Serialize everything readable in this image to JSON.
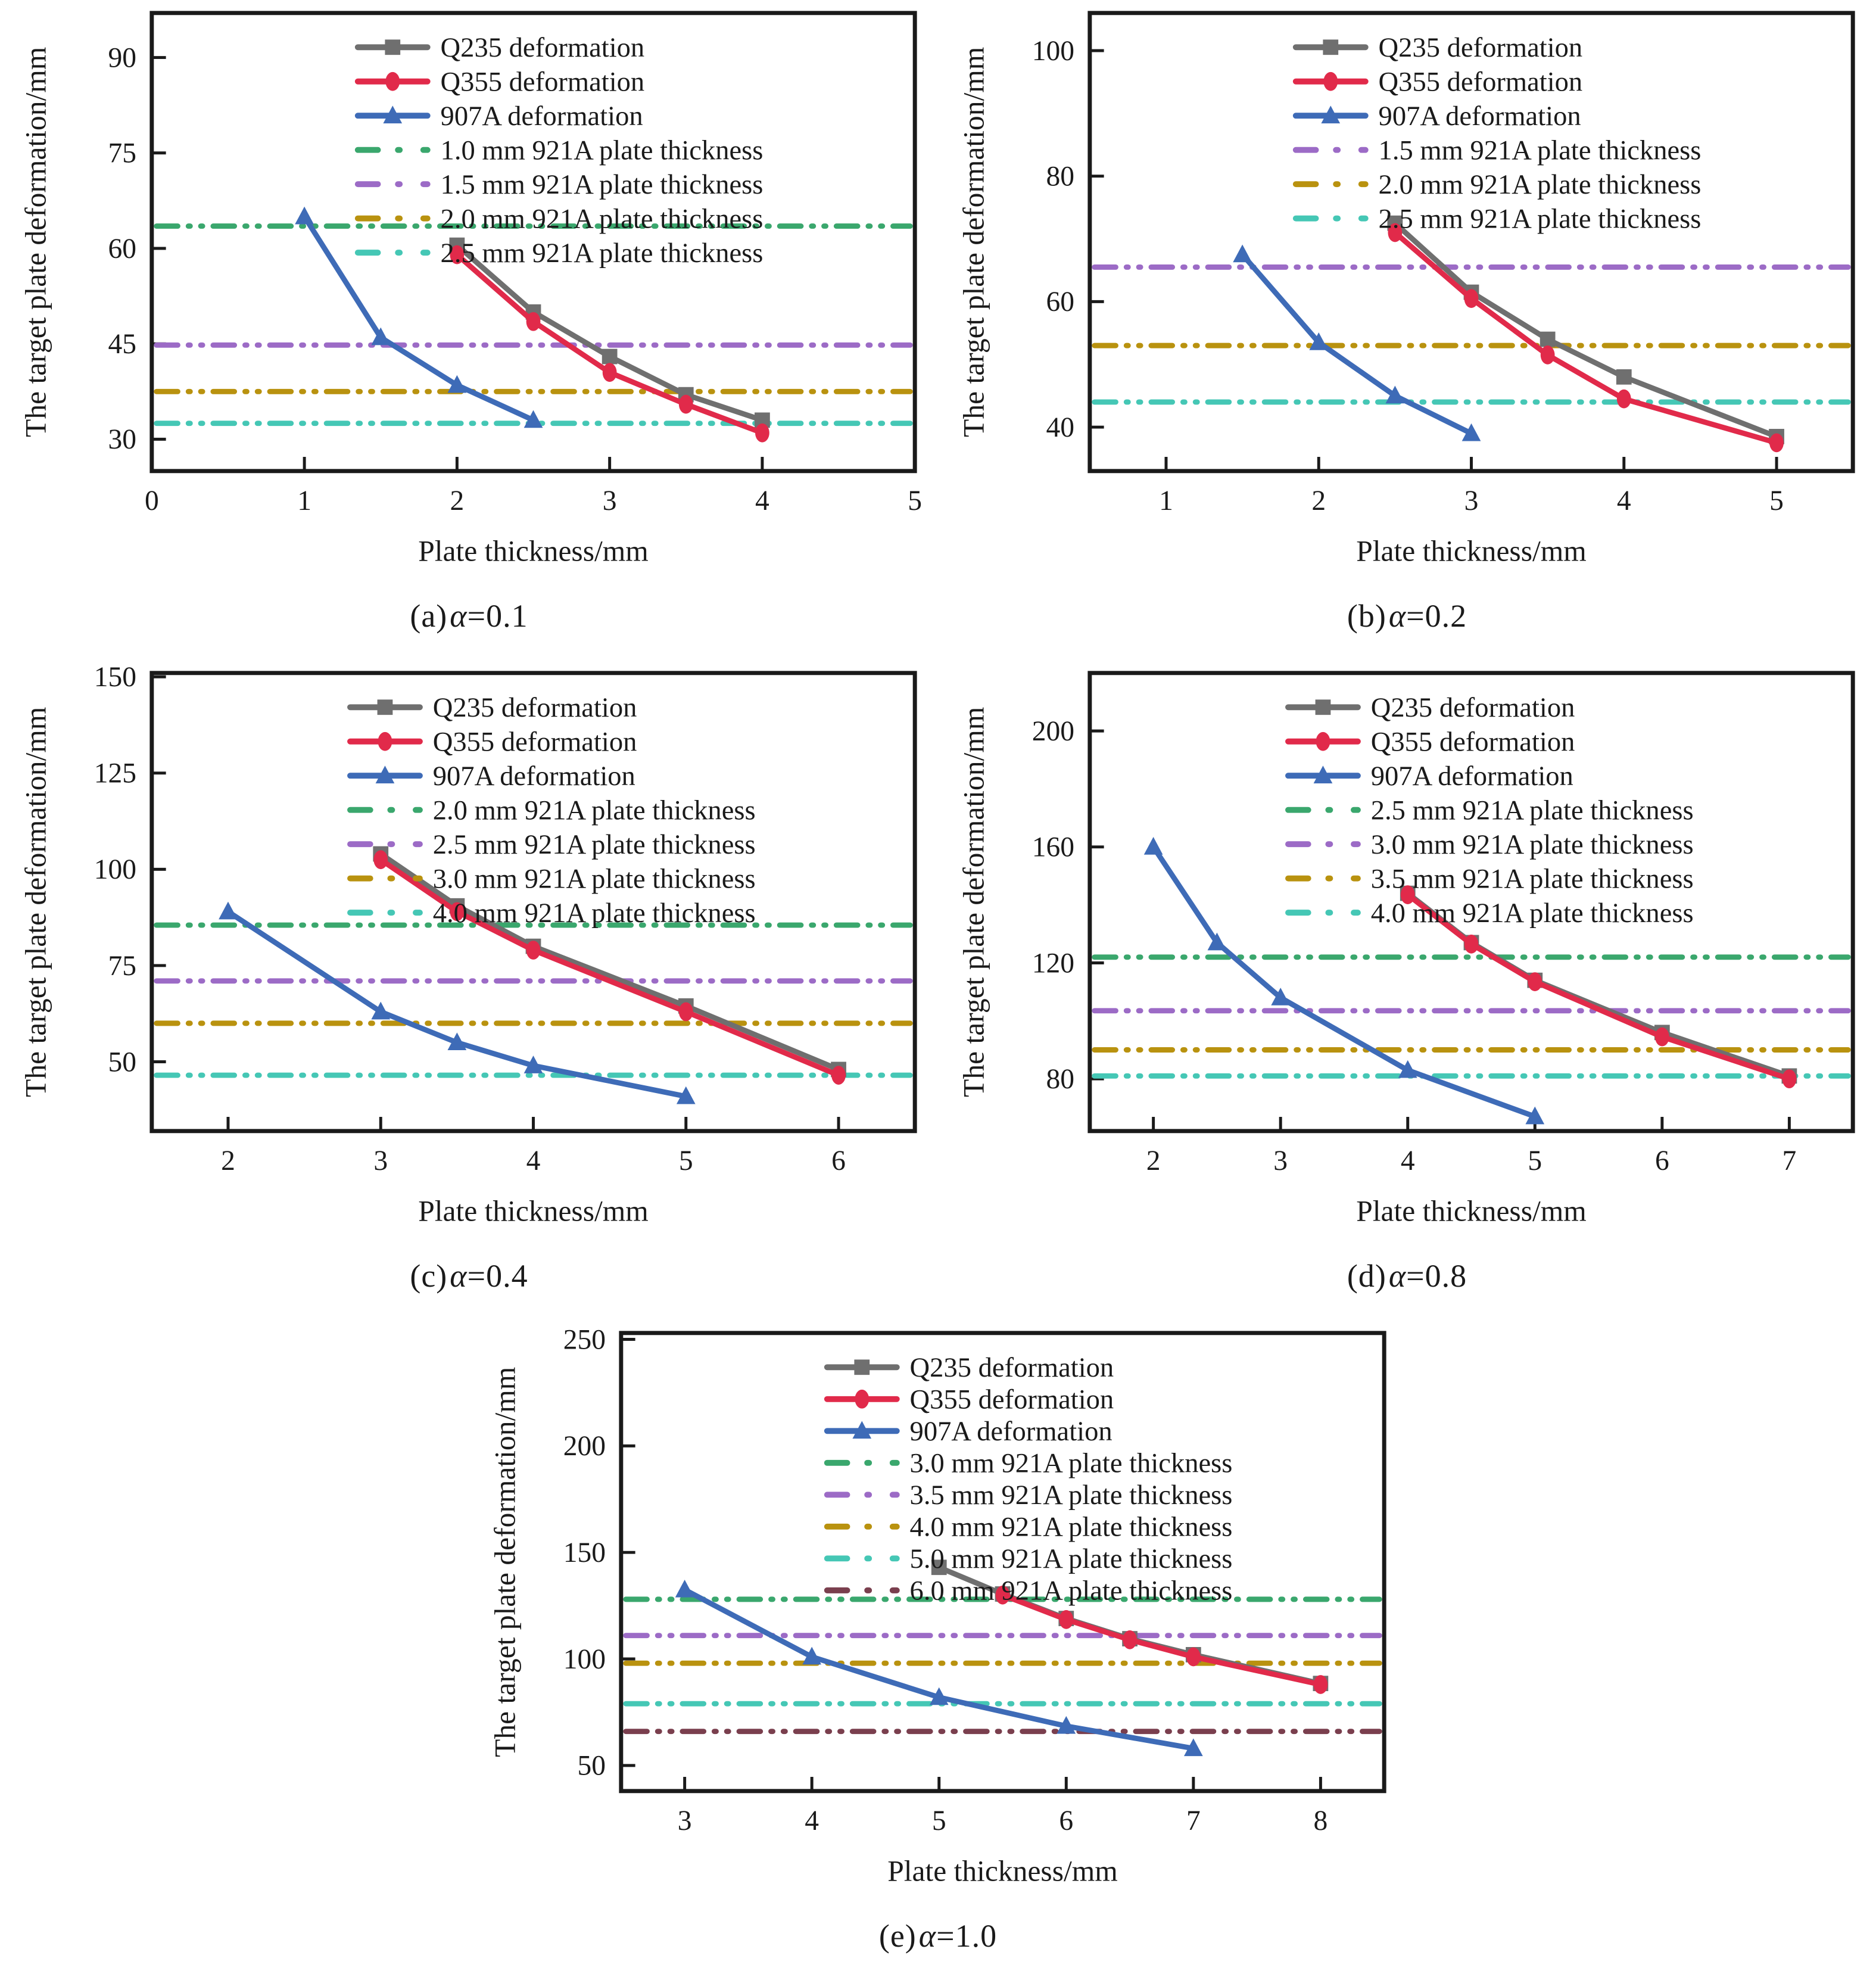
{
  "figure": {
    "xlabel": "Plate thickness/mm",
    "ylabel": "The target plate deformation/mm"
  },
  "chart_data": [
    {
      "id": "a",
      "type": "line",
      "caption": {
        "prefix": "(a)",
        "alpha": "α",
        "value": "=0.1"
      },
      "xlabel": "Plate thickness/mm",
      "ylabel": "The target plate deformation/mm",
      "xlim": [
        0,
        5
      ],
      "ylim": [
        25,
        97
      ],
      "xticks": [
        0,
        1,
        2,
        3,
        4,
        5
      ],
      "yticks": [
        30,
        45,
        60,
        75,
        90
      ],
      "grid": false,
      "legend_position": "upper-center-inside",
      "legend_fx": 0.27,
      "series": [
        {
          "name": "Q235 deformation",
          "color": "#6f6f6f",
          "marker": "square",
          "x": [
            2,
            2.5,
            3,
            3.5,
            4
          ],
          "y": [
            60.5,
            50,
            43,
            37,
            33
          ]
        },
        {
          "name": "Q355 deformation",
          "color": "#e12a4a",
          "marker": "ellipse",
          "x": [
            2,
            2.5,
            3,
            3.5,
            4
          ],
          "y": [
            59,
            48.5,
            40.5,
            35.5,
            31
          ]
        },
        {
          "name": "907A deformation",
          "color": "#3e6bb7",
          "marker": "triangle",
          "x": [
            1,
            1.5,
            2,
            2.5
          ],
          "y": [
            65,
            46,
            38.5,
            33
          ]
        }
      ],
      "hlines": [
        {
          "name": "1.0 mm 921A plate thickness",
          "color": "#3aa76d",
          "y": 63.5
        },
        {
          "name": "1.5 mm 921A plate thickness",
          "color": "#9c6bc6",
          "y": 44.8
        },
        {
          "name": "2.0 mm 921A plate thickness",
          "color": "#b9920f",
          "y": 37.5
        },
        {
          "name": "2.5 mm 921A plate thickness",
          "color": "#45c7b5",
          "y": 32.5
        }
      ]
    },
    {
      "id": "b",
      "type": "line",
      "caption": {
        "prefix": "(b)",
        "alpha": "α",
        "value": "=0.2"
      },
      "xlabel": "Plate thickness/mm",
      "ylabel": "The target plate deformation/mm",
      "xlim": [
        0.5,
        5.5
      ],
      "ylim": [
        33,
        106
      ],
      "xticks": [
        1,
        2,
        3,
        4,
        5
      ],
      "yticks": [
        40,
        60,
        80,
        100
      ],
      "grid": false,
      "legend_position": "upper-center-inside",
      "legend_fx": 0.27,
      "series": [
        {
          "name": "Q235 deformation",
          "color": "#6f6f6f",
          "marker": "square",
          "x": [
            2.5,
            3,
            3.5,
            4,
            5
          ],
          "y": [
            72.5,
            61.5,
            54,
            48,
            38.5
          ]
        },
        {
          "name": "Q355 deformation",
          "color": "#e12a4a",
          "marker": "ellipse",
          "x": [
            2.5,
            3,
            3.5,
            4,
            5
          ],
          "y": [
            71,
            60.5,
            51.5,
            44.5,
            37.5
          ]
        },
        {
          "name": "907A deformation",
          "color": "#3e6bb7",
          "marker": "triangle",
          "x": [
            1.5,
            2,
            2.5,
            3
          ],
          "y": [
            67.5,
            53.5,
            45,
            39
          ]
        }
      ],
      "hlines": [
        {
          "name": "1.5 mm 921A plate thickness",
          "color": "#9c6bc6",
          "y": 65.5
        },
        {
          "name": "2.0 mm 921A plate thickness",
          "color": "#b9920f",
          "y": 53
        },
        {
          "name": "2.5 mm 921A plate thickness",
          "color": "#45c7b5",
          "y": 44
        }
      ]
    },
    {
      "id": "c",
      "type": "line",
      "caption": {
        "prefix": "(c)",
        "alpha": "α",
        "value": "=0.4"
      },
      "xlabel": "Plate thickness/mm",
      "ylabel": "The target plate deformation/mm",
      "xlim": [
        1.5,
        6.5
      ],
      "ylim": [
        32,
        151
      ],
      "xticks": [
        2,
        3,
        4,
        5,
        6
      ],
      "yticks": [
        50,
        75,
        100,
        125,
        150
      ],
      "grid": false,
      "legend_position": "upper-center-inside",
      "legend_fx": 0.26,
      "series": [
        {
          "name": "Q235 deformation",
          "color": "#6f6f6f",
          "marker": "square",
          "x": [
            3,
            3.5,
            4,
            5,
            6
          ],
          "y": [
            104,
            90.5,
            80,
            64.5,
            48
          ]
        },
        {
          "name": "Q355 deformation",
          "color": "#e12a4a",
          "marker": "ellipse",
          "x": [
            3,
            3.5,
            4,
            5,
            6
          ],
          "y": [
            102.5,
            89,
            79,
            63,
            46.5
          ]
        },
        {
          "name": "907A deformation",
          "color": "#3e6bb7",
          "marker": "triangle",
          "x": [
            2,
            3,
            3.5,
            4,
            5
          ],
          "y": [
            89,
            63,
            55,
            49,
            41
          ]
        }
      ],
      "hlines": [
        {
          "name": "2.0 mm 921A plate thickness",
          "color": "#3aa76d",
          "y": 85.5
        },
        {
          "name": "2.5 mm 921A plate thickness",
          "color": "#9c6bc6",
          "y": 71
        },
        {
          "name": "3.0 mm 921A plate thickness",
          "color": "#b9920f",
          "y": 60
        },
        {
          "name": "4.0 mm 921A plate thickness",
          "color": "#45c7b5",
          "y": 46.5
        }
      ]
    },
    {
      "id": "d",
      "type": "line",
      "caption": {
        "prefix": "(d)",
        "alpha": "α",
        "value": "=0.8"
      },
      "xlabel": "Plate thickness/mm",
      "ylabel": "The target plate deformation/mm",
      "xlim": [
        1.5,
        7.5
      ],
      "ylim": [
        62,
        220
      ],
      "xticks": [
        2,
        3,
        4,
        5,
        6,
        7
      ],
      "yticks": [
        80,
        120,
        160,
        200
      ],
      "grid": false,
      "legend_position": "upper-center-inside",
      "legend_fx": 0.26,
      "series": [
        {
          "name": "Q235 deformation",
          "color": "#6f6f6f",
          "marker": "square",
          "x": [
            4,
            4.5,
            5,
            6,
            7
          ],
          "y": [
            144,
            127,
            114,
            96,
            81
          ]
        },
        {
          "name": "Q355 deformation",
          "color": "#e12a4a",
          "marker": "ellipse",
          "x": [
            4,
            4.5,
            5,
            6,
            7
          ],
          "y": [
            143.5,
            126.5,
            113.5,
            94.5,
            80
          ]
        },
        {
          "name": "907A deformation",
          "color": "#3e6bb7",
          "marker": "triangle",
          "x": [
            2,
            2.5,
            3,
            4,
            5
          ],
          "y": [
            160,
            127,
            108,
            83,
            67
          ]
        }
      ],
      "hlines": [
        {
          "name": "2.5 mm 921A plate thickness",
          "color": "#3aa76d",
          "y": 122
        },
        {
          "name": "3.0 mm 921A plate thickness",
          "color": "#9c6bc6",
          "y": 103.5
        },
        {
          "name": "3.5 mm 921A plate thickness",
          "color": "#b9920f",
          "y": 90
        },
        {
          "name": "4.0 mm 921A plate thickness",
          "color": "#45c7b5",
          "y": 81
        }
      ]
    },
    {
      "id": "e",
      "type": "line",
      "caption": {
        "prefix": "(e)",
        "alpha": "α",
        "value": "=1.0"
      },
      "xlabel": "Plate thickness/mm",
      "ylabel": "The target plate deformation/mm",
      "xlim": [
        2.5,
        8.5
      ],
      "ylim": [
        38,
        253
      ],
      "xticks": [
        3,
        4,
        5,
        6,
        7,
        8
      ],
      "yticks": [
        50,
        100,
        150,
        200,
        250
      ],
      "grid": false,
      "legend_position": "upper-center-inside",
      "legend_fx": 0.27,
      "series": [
        {
          "name": "Q235 deformation",
          "color": "#6f6f6f",
          "marker": "square",
          "x": [
            5,
            5.5,
            6,
            6.5,
            7,
            8
          ],
          "y": [
            143,
            130.5,
            119,
            109.5,
            102,
            88.5
          ]
        },
        {
          "name": "Q355 deformation",
          "color": "#e12a4a",
          "marker": "ellipse",
          "x": [
            5.5,
            6,
            6.5,
            7,
            8
          ],
          "y": [
            130,
            118.5,
            109,
            101,
            88
          ]
        },
        {
          "name": "907A deformation",
          "color": "#3e6bb7",
          "marker": "triangle",
          "x": [
            3,
            4,
            5,
            6,
            7
          ],
          "y": [
            132.5,
            101,
            82,
            68.5,
            58
          ]
        }
      ],
      "hlines": [
        {
          "name": "3.0 mm 921A plate thickness",
          "color": "#3aa76d",
          "y": 128
        },
        {
          "name": "3.5 mm 921A plate thickness",
          "color": "#9c6bc6",
          "y": 111
        },
        {
          "name": "4.0 mm 921A plate thickness",
          "color": "#b9920f",
          "y": 98
        },
        {
          "name": "5.0 mm 921A plate thickness",
          "color": "#45c7b5",
          "y": 79
        },
        {
          "name": "6.0 mm 921A plate thickness",
          "color": "#7a3f4e",
          "y": 66
        }
      ]
    }
  ],
  "style_colors": {
    "axis": "#1a1a1a",
    "q235_gray": "#6f6f6f",
    "q355_red": "#e12a4a",
    "s907a_blue": "#3e6bb7",
    "green": "#3aa76d",
    "purple": "#9c6bc6",
    "dark_yellow": "#b9920f",
    "turquoise": "#45c7b5",
    "maroon": "#7a3f4e"
  }
}
